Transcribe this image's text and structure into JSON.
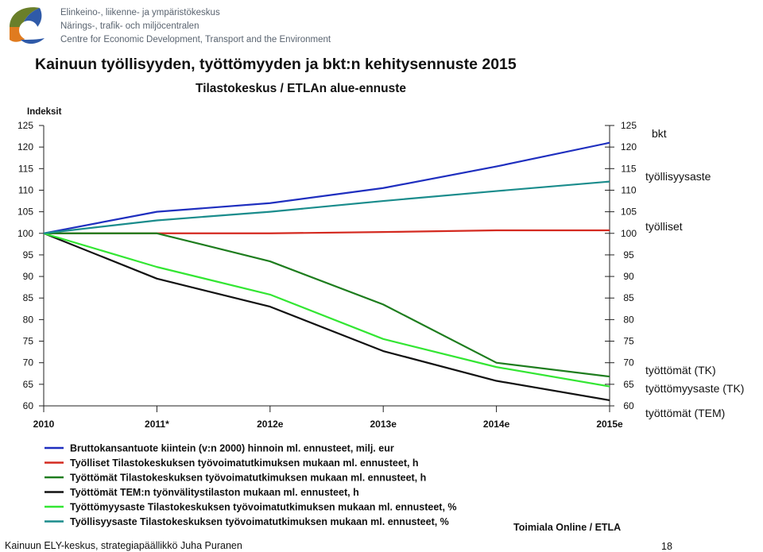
{
  "header": {
    "org_line_1": "Elinkeino-, liikenne- ja ympäristökeskus",
    "org_line_2": "Närings-, trafik- och miljöcentralen",
    "org_line_3": "Centre for Economic Development, Transport and the Environment"
  },
  "slide": {
    "footer": "Kainuun ELY-keskus, strategiapäällikkö Juha Puranen",
    "page_number": "18",
    "side_labels": [
      "bkt",
      "työllisyysaste",
      "työlliset",
      "työttömät (TK)",
      "työttömyysaste (TK)",
      "työttömät (TEM)"
    ]
  },
  "chart_data": {
    "type": "line",
    "title": "Kainuun työllisyyden, työttömyyden ja bkt:n kehitysennuste 2015",
    "subtitle": "Tilastokeskus / ETLAn alue-ennuste",
    "ylabel": "Indeksit",
    "xlabel": "",
    "source": "Toimiala Online / ETLA",
    "categories": [
      "2010",
      "2011*",
      "2012e",
      "2013e",
      "2014e",
      "2015e"
    ],
    "ylim": [
      60,
      125
    ],
    "yticks": [
      60,
      65,
      70,
      75,
      80,
      85,
      90,
      95,
      100,
      105,
      110,
      115,
      120,
      125
    ],
    "grid": false,
    "legend_position": "bottom",
    "series": [
      {
        "name": "Bruttokansantuote kiintein (v:n 2000) hinnoin ml. ennusteet, milj. eur",
        "color": "#1f2fbf",
        "values": [
          100,
          105,
          107,
          110.5,
          115.5,
          121
        ]
      },
      {
        "name": "Työlliset Tilastokeskuksen työvoimatutkimuksen mukaan ml. ennusteet, h",
        "color": "#d42a20",
        "values": [
          100,
          100,
          100,
          100.3,
          100.7,
          100.7
        ]
      },
      {
        "name": "Työttömät Tilastokeskuksen työvoimatutkimuksen mukaan ml. ennusteet, h",
        "color": "#1e7d1e",
        "values": [
          100,
          100,
          93.5,
          83.5,
          70,
          66.8
        ]
      },
      {
        "name": "Työttömät TEM:n työnvälitystilaston mukaan ml. ennusteet, h",
        "color": "#111111",
        "values": [
          100,
          89.5,
          83,
          72.7,
          65.8,
          61.3
        ]
      },
      {
        "name": "Työttömyysaste Tilastokeskuksen työvoimatutkimuksen mukaan ml. ennusteet, %",
        "color": "#33e633",
        "values": [
          100,
          92.2,
          85.8,
          75.5,
          69,
          64.5
        ]
      },
      {
        "name": "Työllisyysaste Tilastokeskuksen työvoimatutkimuksen mukaan ml. ennusteet, %",
        "color": "#1a8c8c",
        "values": [
          100,
          103,
          105,
          107.5,
          109.8,
          112
        ]
      }
    ]
  }
}
